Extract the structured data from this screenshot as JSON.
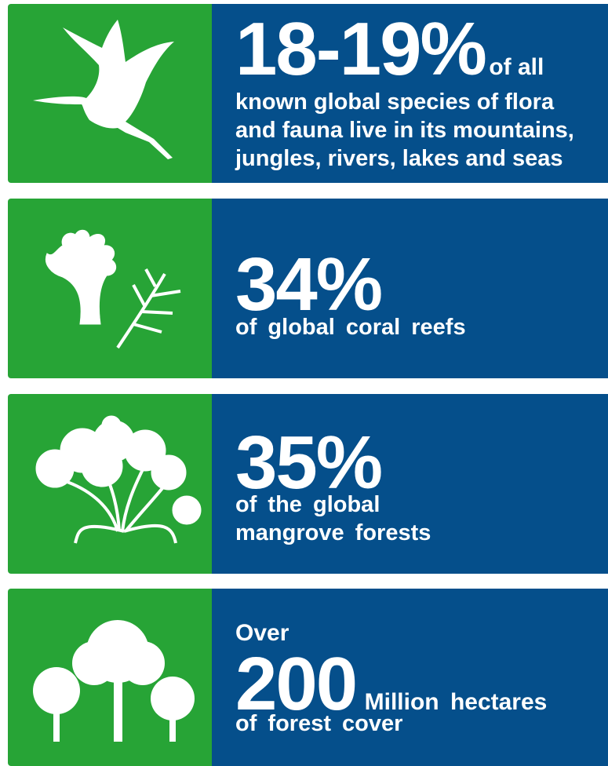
{
  "cards": [
    {
      "headline": "18-19%",
      "suffix": "of all",
      "lines": [
        "known global species of flora",
        "and fauna live in its mountains,",
        "jungles, rivers, lakes and seas"
      ]
    },
    {
      "headline": "34%",
      "lines": [
        "of global coral reefs"
      ]
    },
    {
      "headline": "35%",
      "lines": [
        "of the global",
        "mangrove forests"
      ]
    },
    {
      "prefix": "Over",
      "headline": "200",
      "suffix": "Million hectares",
      "lines": [
        "of forest cover"
      ]
    }
  ]
}
